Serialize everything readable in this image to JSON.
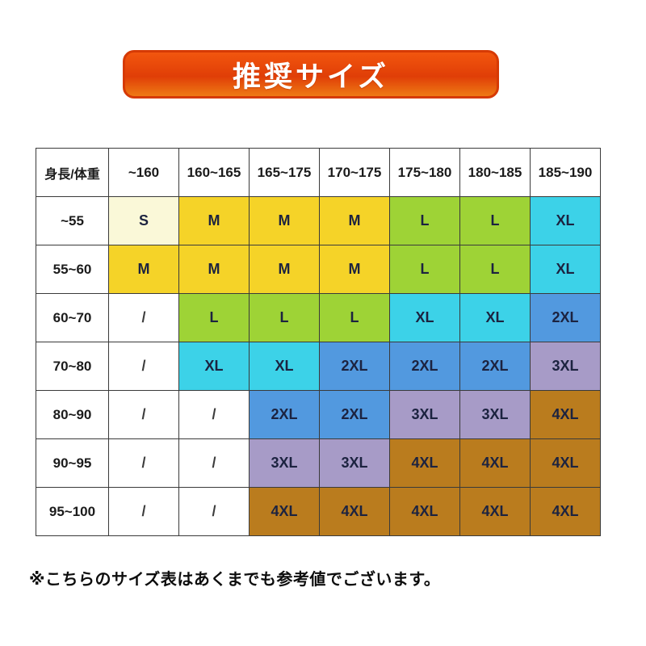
{
  "banner": {
    "title": "推奨サイズ",
    "color_top": "#F2560E",
    "color_mid": "#E03E07",
    "color_bottom": "#EE7A14",
    "color_border": "#D63A05",
    "text_color": "#FFFFFF"
  },
  "chart_data": {
    "type": "table",
    "title": "推奨サイズ",
    "columns": [
      "身長/体重",
      "~160",
      "160~165",
      "165~175",
      "170~175",
      "175~180",
      "180~185",
      "185~190"
    ],
    "rows": [
      {
        "label": "~55",
        "cells": [
          "S",
          "M",
          "M",
          "M",
          "L",
          "L",
          "XL"
        ]
      },
      {
        "label": "55~60",
        "cells": [
          "M",
          "M",
          "M",
          "M",
          "L",
          "L",
          "XL"
        ]
      },
      {
        "label": "60~70",
        "cells": [
          "/",
          "L",
          "L",
          "L",
          "XL",
          "XL",
          "2XL"
        ]
      },
      {
        "label": "70~80",
        "cells": [
          "/",
          "XL",
          "XL",
          "2XL",
          "2XL",
          "2XL",
          "3XL"
        ]
      },
      {
        "label": "80~90",
        "cells": [
          "/",
          "/",
          "2XL",
          "2XL",
          "3XL",
          "3XL",
          "4XL"
        ]
      },
      {
        "label": "90~95",
        "cells": [
          "/",
          "/",
          "3XL",
          "3XL",
          "4XL",
          "4XL",
          "4XL"
        ]
      },
      {
        "label": "95~100",
        "cells": [
          "/",
          "/",
          "4XL",
          "4XL",
          "4XL",
          "4XL",
          "4XL"
        ]
      }
    ],
    "size_colors": {
      "S": "#FAF8D8",
      "M": "#F5D328",
      "L": "#9ED336",
      "XL": "#3CD2E8",
      "2XL": "#5299DF",
      "3XL": "#A79BC7",
      "4XL": "#BA7C1E",
      "/": "#FFFFFF"
    },
    "legend_position": "none",
    "grid": true
  },
  "note": {
    "text": "※こちらのサイズ表はあくまでも参考値でございます。"
  }
}
